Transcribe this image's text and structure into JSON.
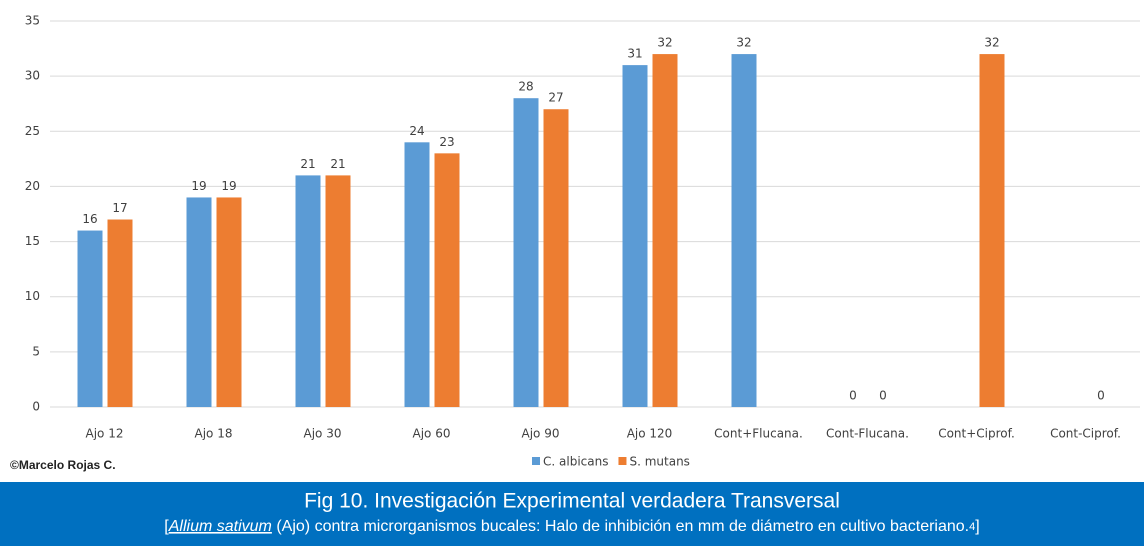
{
  "chart_data": {
    "type": "bar",
    "categories": [
      "Ajo 12",
      "Ajo 18",
      "Ajo 30",
      "Ajo 60",
      "Ajo 90",
      "Ajo 120",
      "Cont+Flucana.",
      "Cont-Flucana.",
      "Cont+Ciprof.",
      "Cont-Ciprof."
    ],
    "series": [
      {
        "name": "C. albicans",
        "color": "#5b9bd5",
        "values": [
          16,
          19,
          21,
          24,
          28,
          31,
          32,
          0,
          null,
          null
        ]
      },
      {
        "name": "S. mutans",
        "color": "#ed7d31",
        "values": [
          17,
          19,
          21,
          23,
          27,
          32,
          null,
          0,
          32,
          0
        ]
      }
    ],
    "ylim": [
      0,
      35
    ],
    "yticks": [
      0,
      5,
      10,
      15,
      20,
      25,
      30,
      35
    ],
    "grid": true,
    "legend": "bottom"
  },
  "credit": "©Marcelo Rojas C.",
  "caption": {
    "line1": "Fig 10. Investigación Experimental verdadera Transversal",
    "line2_open": "[",
    "line2_species": "Allium sativum",
    "line2_rest": " (Ajo) contra microrganismos bucales: Halo de inhibición en mm de diámetro en cultivo bacteriano.",
    "line2_ref": "4",
    "line2_close": "]"
  }
}
